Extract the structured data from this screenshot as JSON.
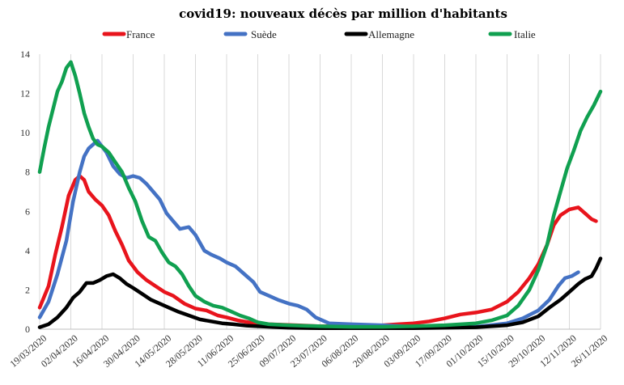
{
  "chart_data": {
    "type": "line",
    "title": "covid19: nouveaux décès par million d'habitants",
    "xlabel": "",
    "ylabel": "",
    "x_ticks": [
      "19/03/2020",
      "02/04/2020",
      "16/04/2020",
      "30/04/2020",
      "14/05/2020",
      "28/05/2020",
      "11/06/2020",
      "25/06/2020",
      "09/07/2020",
      "23/07/2020",
      "06/08/2020",
      "20/08/2020",
      "03/09/2020",
      "17/09/2020",
      "01/10/2020",
      "15/10/2020",
      "29/10/2020",
      "12/11/2020",
      "26/11/2020"
    ],
    "y_ticks": [
      0,
      2,
      4,
      6,
      8,
      10,
      12,
      14
    ],
    "ylim": [
      0,
      14
    ],
    "xlim": [
      "19/03/2020",
      "26/11/2020"
    ],
    "grid": "vertical",
    "legend_position": "top",
    "series": [
      {
        "name": "France",
        "color": "#e8141c",
        "points": [
          [
            "19/03/2020",
            1.1
          ],
          [
            "23/03/2020",
            2.2
          ],
          [
            "26/03/2020",
            3.8
          ],
          [
            "29/03/2020",
            5.2
          ],
          [
            "01/04/2020",
            6.8
          ],
          [
            "04/04/2020",
            7.6
          ],
          [
            "06/04/2020",
            7.8
          ],
          [
            "08/04/2020",
            7.6
          ],
          [
            "10/04/2020",
            7.0
          ],
          [
            "13/04/2020",
            6.6
          ],
          [
            "16/04/2020",
            6.3
          ],
          [
            "19/04/2020",
            5.8
          ],
          [
            "22/04/2020",
            5.0
          ],
          [
            "25/04/2020",
            4.3
          ],
          [
            "28/04/2020",
            3.5
          ],
          [
            "02/05/2020",
            2.9
          ],
          [
            "06/05/2020",
            2.5
          ],
          [
            "10/05/2020",
            2.2
          ],
          [
            "14/05/2020",
            1.9
          ],
          [
            "18/05/2020",
            1.7
          ],
          [
            "23/05/2020",
            1.3
          ],
          [
            "28/05/2020",
            1.05
          ],
          [
            "02/06/2020",
            0.95
          ],
          [
            "07/06/2020",
            0.7
          ],
          [
            "11/06/2020",
            0.6
          ],
          [
            "16/06/2020",
            0.45
          ],
          [
            "21/06/2020",
            0.35
          ],
          [
            "25/06/2020",
            0.3
          ],
          [
            "30/06/2020",
            0.25
          ],
          [
            "09/07/2020",
            0.22
          ],
          [
            "23/07/2020",
            0.15
          ],
          [
            "06/08/2020",
            0.15
          ],
          [
            "20/08/2020",
            0.2
          ],
          [
            "27/08/2020",
            0.25
          ],
          [
            "03/09/2020",
            0.3
          ],
          [
            "10/09/2020",
            0.4
          ],
          [
            "17/09/2020",
            0.55
          ],
          [
            "24/09/2020",
            0.75
          ],
          [
            "01/10/2020",
            0.85
          ],
          [
            "08/10/2020",
            1.0
          ],
          [
            "15/10/2020",
            1.4
          ],
          [
            "20/10/2020",
            1.9
          ],
          [
            "25/10/2020",
            2.6
          ],
          [
            "29/10/2020",
            3.3
          ],
          [
            "02/11/2020",
            4.3
          ],
          [
            "05/11/2020",
            5.3
          ],
          [
            "08/11/2020",
            5.8
          ],
          [
            "12/11/2020",
            6.1
          ],
          [
            "16/11/2020",
            6.2
          ],
          [
            "19/11/2020",
            5.9
          ],
          [
            "22/11/2020",
            5.6
          ],
          [
            "24/11/2020",
            5.5
          ]
        ]
      },
      {
        "name": "Suède",
        "color": "#4472c4",
        "points": [
          [
            "19/03/2020",
            0.6
          ],
          [
            "23/03/2020",
            1.4
          ],
          [
            "27/03/2020",
            2.8
          ],
          [
            "31/03/2020",
            4.5
          ],
          [
            "03/04/2020",
            6.5
          ],
          [
            "06/04/2020",
            8.0
          ],
          [
            "08/04/2020",
            8.8
          ],
          [
            "10/04/2020",
            9.2
          ],
          [
            "12/04/2020",
            9.4
          ],
          [
            "14/04/2020",
            9.6
          ],
          [
            "16/04/2020",
            9.3
          ],
          [
            "18/04/2020",
            9.0
          ],
          [
            "21/04/2020",
            8.3
          ],
          [
            "24/04/2020",
            7.9
          ],
          [
            "27/04/2020",
            7.7
          ],
          [
            "30/04/2020",
            7.8
          ],
          [
            "03/05/2020",
            7.7
          ],
          [
            "06/05/2020",
            7.4
          ],
          [
            "09/05/2020",
            7.0
          ],
          [
            "12/05/2020",
            6.6
          ],
          [
            "15/05/2020",
            5.9
          ],
          [
            "18/05/2020",
            5.5
          ],
          [
            "21/05/2020",
            5.1
          ],
          [
            "25/05/2020",
            5.2
          ],
          [
            "28/05/2020",
            4.8
          ],
          [
            "01/06/2020",
            4.0
          ],
          [
            "04/06/2020",
            3.8
          ],
          [
            "08/06/2020",
            3.6
          ],
          [
            "11/06/2020",
            3.4
          ],
          [
            "15/06/2020",
            3.2
          ],
          [
            "19/06/2020",
            2.8
          ],
          [
            "23/06/2020",
            2.4
          ],
          [
            "26/06/2020",
            1.9
          ],
          [
            "30/06/2020",
            1.7
          ],
          [
            "04/07/2020",
            1.5
          ],
          [
            "09/07/2020",
            1.3
          ],
          [
            "13/07/2020",
            1.2
          ],
          [
            "17/07/2020",
            1.0
          ],
          [
            "21/07/2020",
            0.6
          ],
          [
            "27/07/2020",
            0.3
          ],
          [
            "06/08/2020",
            0.25
          ],
          [
            "20/08/2020",
            0.2
          ],
          [
            "03/09/2020",
            0.12
          ],
          [
            "17/09/2020",
            0.1
          ],
          [
            "01/10/2020",
            0.12
          ],
          [
            "15/10/2020",
            0.3
          ],
          [
            "22/10/2020",
            0.55
          ],
          [
            "29/10/2020",
            0.95
          ],
          [
            "03/11/2020",
            1.5
          ],
          [
            "07/11/2020",
            2.2
          ],
          [
            "10/11/2020",
            2.6
          ],
          [
            "13/11/2020",
            2.7
          ],
          [
            "16/11/2020",
            2.9
          ]
        ]
      },
      {
        "name": "Allemagne",
        "color": "#000000",
        "points": [
          [
            "19/03/2020",
            0.1
          ],
          [
            "23/03/2020",
            0.25
          ],
          [
            "27/03/2020",
            0.6
          ],
          [
            "31/03/2020",
            1.1
          ],
          [
            "03/04/2020",
            1.6
          ],
          [
            "06/04/2020",
            1.9
          ],
          [
            "09/04/2020",
            2.35
          ],
          [
            "12/04/2020",
            2.35
          ],
          [
            "15/04/2020",
            2.5
          ],
          [
            "18/04/2020",
            2.7
          ],
          [
            "21/04/2020",
            2.8
          ],
          [
            "24/04/2020",
            2.6
          ],
          [
            "27/04/2020",
            2.3
          ],
          [
            "30/04/2020",
            2.1
          ],
          [
            "04/05/2020",
            1.8
          ],
          [
            "08/05/2020",
            1.5
          ],
          [
            "12/05/2020",
            1.3
          ],
          [
            "16/05/2020",
            1.1
          ],
          [
            "20/05/2020",
            0.9
          ],
          [
            "25/05/2020",
            0.7
          ],
          [
            "30/05/2020",
            0.5
          ],
          [
            "04/06/2020",
            0.4
          ],
          [
            "09/06/2020",
            0.3
          ],
          [
            "14/06/2020",
            0.25
          ],
          [
            "20/06/2020",
            0.18
          ],
          [
            "25/06/2020",
            0.15
          ],
          [
            "09/07/2020",
            0.07
          ],
          [
            "23/07/2020",
            0.05
          ],
          [
            "06/08/2020",
            0.05
          ],
          [
            "20/08/2020",
            0.05
          ],
          [
            "03/09/2020",
            0.05
          ],
          [
            "17/09/2020",
            0.07
          ],
          [
            "01/10/2020",
            0.1
          ],
          [
            "15/10/2020",
            0.2
          ],
          [
            "22/10/2020",
            0.35
          ],
          [
            "29/10/2020",
            0.65
          ],
          [
            "03/11/2020",
            1.1
          ],
          [
            "08/11/2020",
            1.5
          ],
          [
            "12/11/2020",
            1.9
          ],
          [
            "16/11/2020",
            2.3
          ],
          [
            "19/11/2020",
            2.55
          ],
          [
            "22/11/2020",
            2.7
          ],
          [
            "24/11/2020",
            3.1
          ],
          [
            "26/11/2020",
            3.6
          ]
        ]
      },
      {
        "name": "Italie",
        "color": "#10a050",
        "points": [
          [
            "19/03/2020",
            8.0
          ],
          [
            "21/03/2020",
            9.2
          ],
          [
            "23/03/2020",
            10.3
          ],
          [
            "25/03/2020",
            11.2
          ],
          [
            "27/03/2020",
            12.1
          ],
          [
            "29/03/2020",
            12.6
          ],
          [
            "31/03/2020",
            13.3
          ],
          [
            "02/04/2020",
            13.6
          ],
          [
            "04/04/2020",
            12.9
          ],
          [
            "06/04/2020",
            12.0
          ],
          [
            "08/04/2020",
            11.0
          ],
          [
            "10/04/2020",
            10.3
          ],
          [
            "12/04/2020",
            9.7
          ],
          [
            "14/04/2020",
            9.4
          ],
          [
            "16/04/2020",
            9.3
          ],
          [
            "19/04/2020",
            9.0
          ],
          [
            "22/04/2020",
            8.5
          ],
          [
            "25/04/2020",
            8.0
          ],
          [
            "28/04/2020",
            7.2
          ],
          [
            "01/05/2020",
            6.5
          ],
          [
            "04/05/2020",
            5.5
          ],
          [
            "07/05/2020",
            4.7
          ],
          [
            "10/05/2020",
            4.5
          ],
          [
            "13/05/2020",
            3.9
          ],
          [
            "16/05/2020",
            3.4
          ],
          [
            "19/05/2020",
            3.2
          ],
          [
            "22/05/2020",
            2.8
          ],
          [
            "25/05/2020",
            2.2
          ],
          [
            "28/05/2020",
            1.7
          ],
          [
            "01/06/2020",
            1.4
          ],
          [
            "05/06/2020",
            1.2
          ],
          [
            "09/06/2020",
            1.1
          ],
          [
            "13/06/2020",
            0.9
          ],
          [
            "17/06/2020",
            0.7
          ],
          [
            "21/06/2020",
            0.55
          ],
          [
            "25/06/2020",
            0.35
          ],
          [
            "30/06/2020",
            0.25
          ],
          [
            "09/07/2020",
            0.2
          ],
          [
            "23/07/2020",
            0.15
          ],
          [
            "06/08/2020",
            0.12
          ],
          [
            "20/08/2020",
            0.12
          ],
          [
            "03/09/2020",
            0.15
          ],
          [
            "17/09/2020",
            0.2
          ],
          [
            "01/10/2020",
            0.3
          ],
          [
            "08/10/2020",
            0.45
          ],
          [
            "15/10/2020",
            0.7
          ],
          [
            "20/10/2020",
            1.2
          ],
          [
            "25/10/2020",
            2.0
          ],
          [
            "29/10/2020",
            3.0
          ],
          [
            "02/11/2020",
            4.3
          ],
          [
            "05/11/2020",
            5.8
          ],
          [
            "08/11/2020",
            7.0
          ],
          [
            "11/11/2020",
            8.2
          ],
          [
            "14/11/2020",
            9.1
          ],
          [
            "17/11/2020",
            10.1
          ],
          [
            "20/11/2020",
            10.8
          ],
          [
            "23/11/2020",
            11.4
          ],
          [
            "26/11/2020",
            12.1
          ]
        ]
      }
    ]
  }
}
